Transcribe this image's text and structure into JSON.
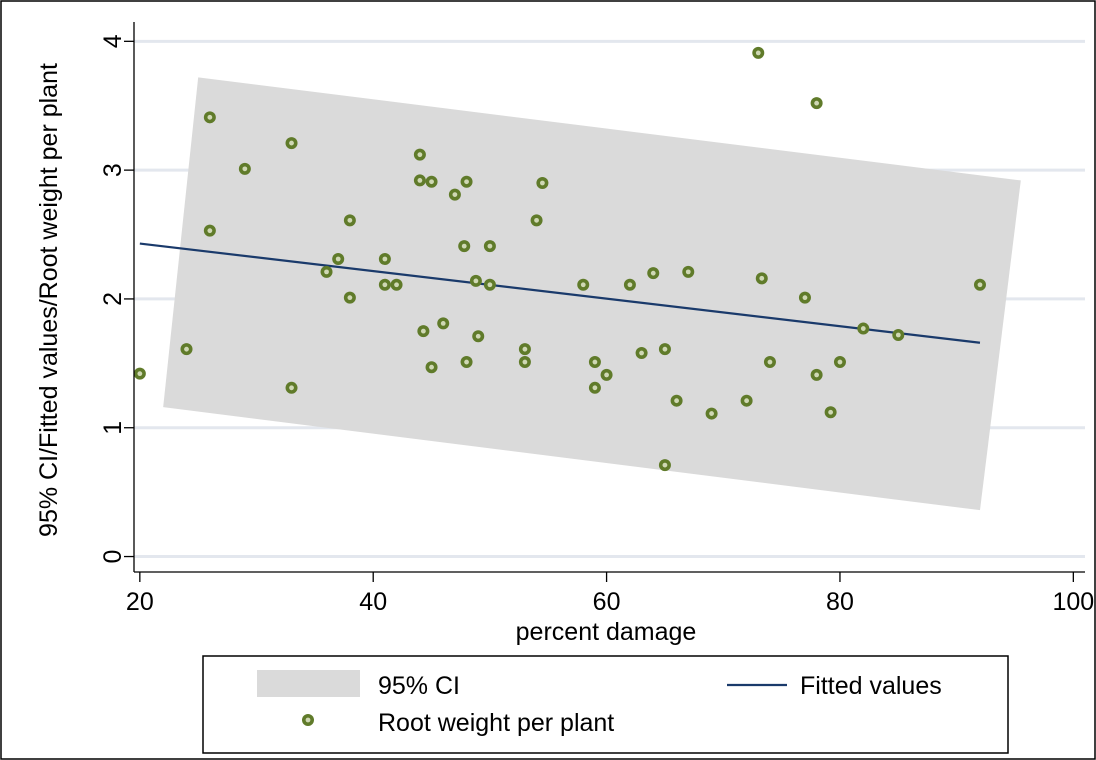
{
  "chart_data": {
    "type": "scatter",
    "xlabel": "percent damage",
    "ylabel": "95% CI/Fitted values/Root weight per plant",
    "xlim": [
      19.5,
      101
    ],
    "ylim": [
      -0.12,
      4.15
    ],
    "x_ticks": [
      20,
      40,
      60,
      80,
      100
    ],
    "y_ticks": [
      0,
      1,
      2,
      3,
      4
    ],
    "grid": "horizontal",
    "legend_position": "bottom",
    "series": [
      {
        "name": "95% CI",
        "kind": "band",
        "color": "#dadada",
        "x": [
          22,
          25,
          95.5,
          92
        ],
        "y": [
          1.16,
          3.72,
          2.92,
          0.36
        ]
      },
      {
        "name": "Fitted values",
        "kind": "line",
        "color": "#1a3a6b",
        "x": [
          20,
          92
        ],
        "y": [
          2.43,
          1.66
        ]
      },
      {
        "name": "Root weight per plant",
        "kind": "points",
        "color": "#607b2a",
        "points": [
          [
            20,
            1.42
          ],
          [
            24,
            1.61
          ],
          [
            26,
            3.41
          ],
          [
            26,
            2.53
          ],
          [
            29,
            3.01
          ],
          [
            33,
            3.21
          ],
          [
            33,
            1.31
          ],
          [
            36,
            2.21
          ],
          [
            37,
            2.31
          ],
          [
            38,
            2.61
          ],
          [
            38,
            2.01
          ],
          [
            41,
            2.31
          ],
          [
            41,
            2.11
          ],
          [
            42,
            2.11
          ],
          [
            44,
            3.12
          ],
          [
            44,
            2.92
          ],
          [
            44.3,
            1.75
          ],
          [
            45,
            2.91
          ],
          [
            45,
            1.47
          ],
          [
            46,
            1.81
          ],
          [
            47,
            2.81
          ],
          [
            47.8,
            2.41
          ],
          [
            48,
            2.91
          ],
          [
            48,
            1.51
          ],
          [
            48.8,
            2.14
          ],
          [
            49,
            1.71
          ],
          [
            50,
            2.41
          ],
          [
            50,
            2.11
          ],
          [
            53,
            1.61
          ],
          [
            53,
            1.51
          ],
          [
            54,
            2.61
          ],
          [
            54.5,
            2.9
          ],
          [
            58,
            2.11
          ],
          [
            59,
            1.51
          ],
          [
            59,
            1.31
          ],
          [
            60,
            1.41
          ],
          [
            62,
            2.11
          ],
          [
            63,
            1.58
          ],
          [
            64,
            2.2
          ],
          [
            65,
            1.61
          ],
          [
            65,
            0.71
          ],
          [
            66,
            1.21
          ],
          [
            67,
            2.21
          ],
          [
            69,
            1.11
          ],
          [
            72,
            1.21
          ],
          [
            73,
            3.91
          ],
          [
            73.3,
            2.16
          ],
          [
            74,
            1.51
          ],
          [
            77,
            2.01
          ],
          [
            78,
            3.52
          ],
          [
            78,
            1.41
          ],
          [
            79.2,
            1.12
          ],
          [
            80,
            1.51
          ],
          [
            82,
            1.77
          ],
          [
            85,
            1.72
          ],
          [
            92,
            2.11
          ]
        ]
      }
    ]
  },
  "legend": {
    "ci_label": "95% CI",
    "fit_label": "Fitted values",
    "points_label": "Root weight per plant"
  }
}
